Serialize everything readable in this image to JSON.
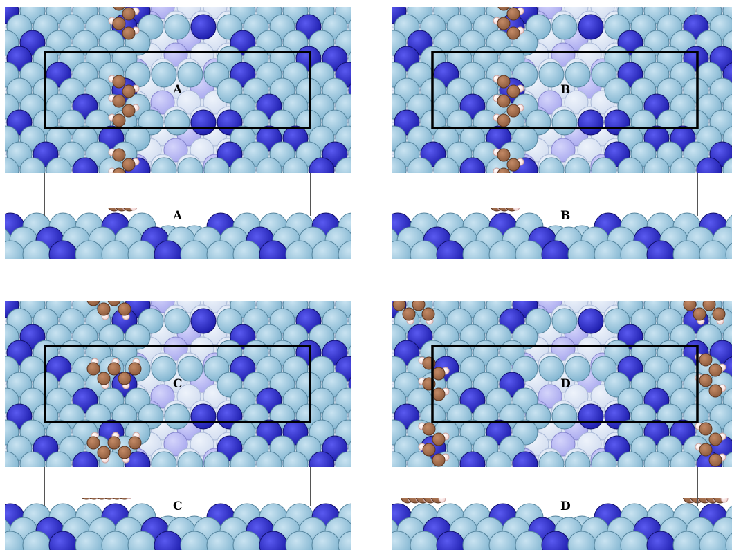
{
  "panels": [
    {
      "label": "A",
      "molecule": "vertical-chain"
    },
    {
      "label": "B",
      "molecule": "vertical-chain"
    },
    {
      "label": "C",
      "molecule": "flat-chain"
    },
    {
      "label": "D",
      "molecule": "split-chains"
    }
  ],
  "colors": {
    "light_atom": "#7fb3cf",
    "light_atom_hi": "#c9e3f1",
    "light_atom_edge": "#55849d",
    "dark_atom": "#1a1aa8",
    "dark_atom_hi": "#5a5af0",
    "pale_atom": "#d2ddf0",
    "violet_atom": "#a8a8ee",
    "carbon": "#8b5a3c",
    "carbon_edge": "#5a341f",
    "hydrogen": "#f3d1cf",
    "box_stroke": "#000000",
    "background": "#ffffff"
  }
}
